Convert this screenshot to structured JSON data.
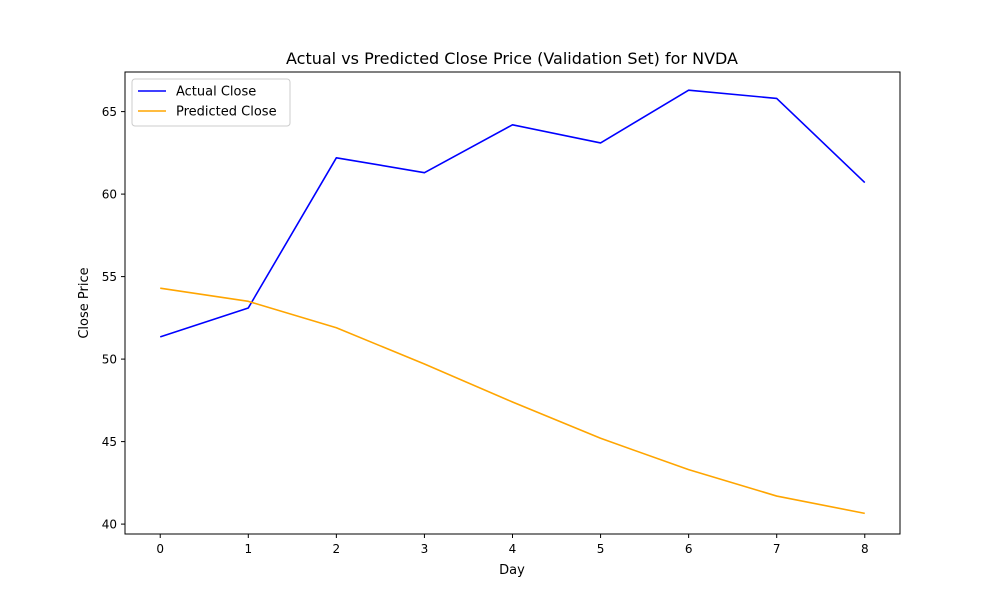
{
  "chart_data": {
    "type": "line",
    "title": "Actual vs Predicted Close Price (Validation Set) for NVDA",
    "xlabel": "Day",
    "ylabel": "Close Price",
    "x": [
      0,
      1,
      2,
      3,
      4,
      5,
      6,
      7,
      8
    ],
    "xlim": [
      -0.4,
      8.4
    ],
    "ylim": [
      39.4,
      67.4
    ],
    "xticks": [
      0,
      1,
      2,
      3,
      4,
      5,
      6,
      7,
      8
    ],
    "yticks": [
      40,
      45,
      50,
      55,
      60,
      65
    ],
    "grid": false,
    "legend_position": "top-left",
    "series": [
      {
        "name": "Actual Close",
        "color": "#0000ff",
        "values": [
          51.35,
          53.1,
          62.2,
          61.3,
          64.2,
          63.1,
          66.3,
          65.8,
          60.7
        ]
      },
      {
        "name": "Predicted Close",
        "color": "#ffa500",
        "values": [
          54.3,
          53.5,
          51.9,
          49.7,
          47.4,
          45.2,
          43.3,
          41.7,
          40.65
        ]
      }
    ]
  }
}
